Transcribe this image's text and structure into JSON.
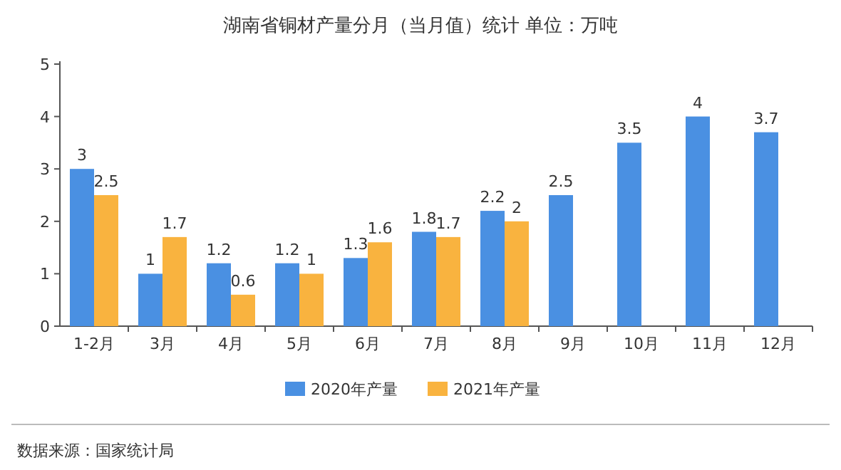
{
  "chart_data": {
    "type": "bar",
    "title": "湖南省铜材产量分月（当月值）统计 单位：万吨",
    "categories": [
      "1-2月",
      "3月",
      "4月",
      "5月",
      "6月",
      "7月",
      "8月",
      "9月",
      "10月",
      "11月",
      "12月"
    ],
    "series": [
      {
        "name": "2020年产量",
        "color": "#4a90e2",
        "values": [
          3,
          1,
          1.2,
          1.2,
          1.3,
          1.8,
          2.2,
          2.5,
          3.5,
          4,
          3.7
        ]
      },
      {
        "name": "2021年产量",
        "color": "#f9b33f",
        "values": [
          2.5,
          1.7,
          0.6,
          1,
          1.6,
          1.7,
          2,
          null,
          null,
          null,
          null
        ]
      }
    ],
    "ylim": [
      0,
      5
    ],
    "yticks": [
      0,
      1,
      2,
      3,
      4,
      5
    ],
    "data_labels": true,
    "legend": "bottom",
    "annotations": [
      "数据来源：国家统计局"
    ]
  }
}
